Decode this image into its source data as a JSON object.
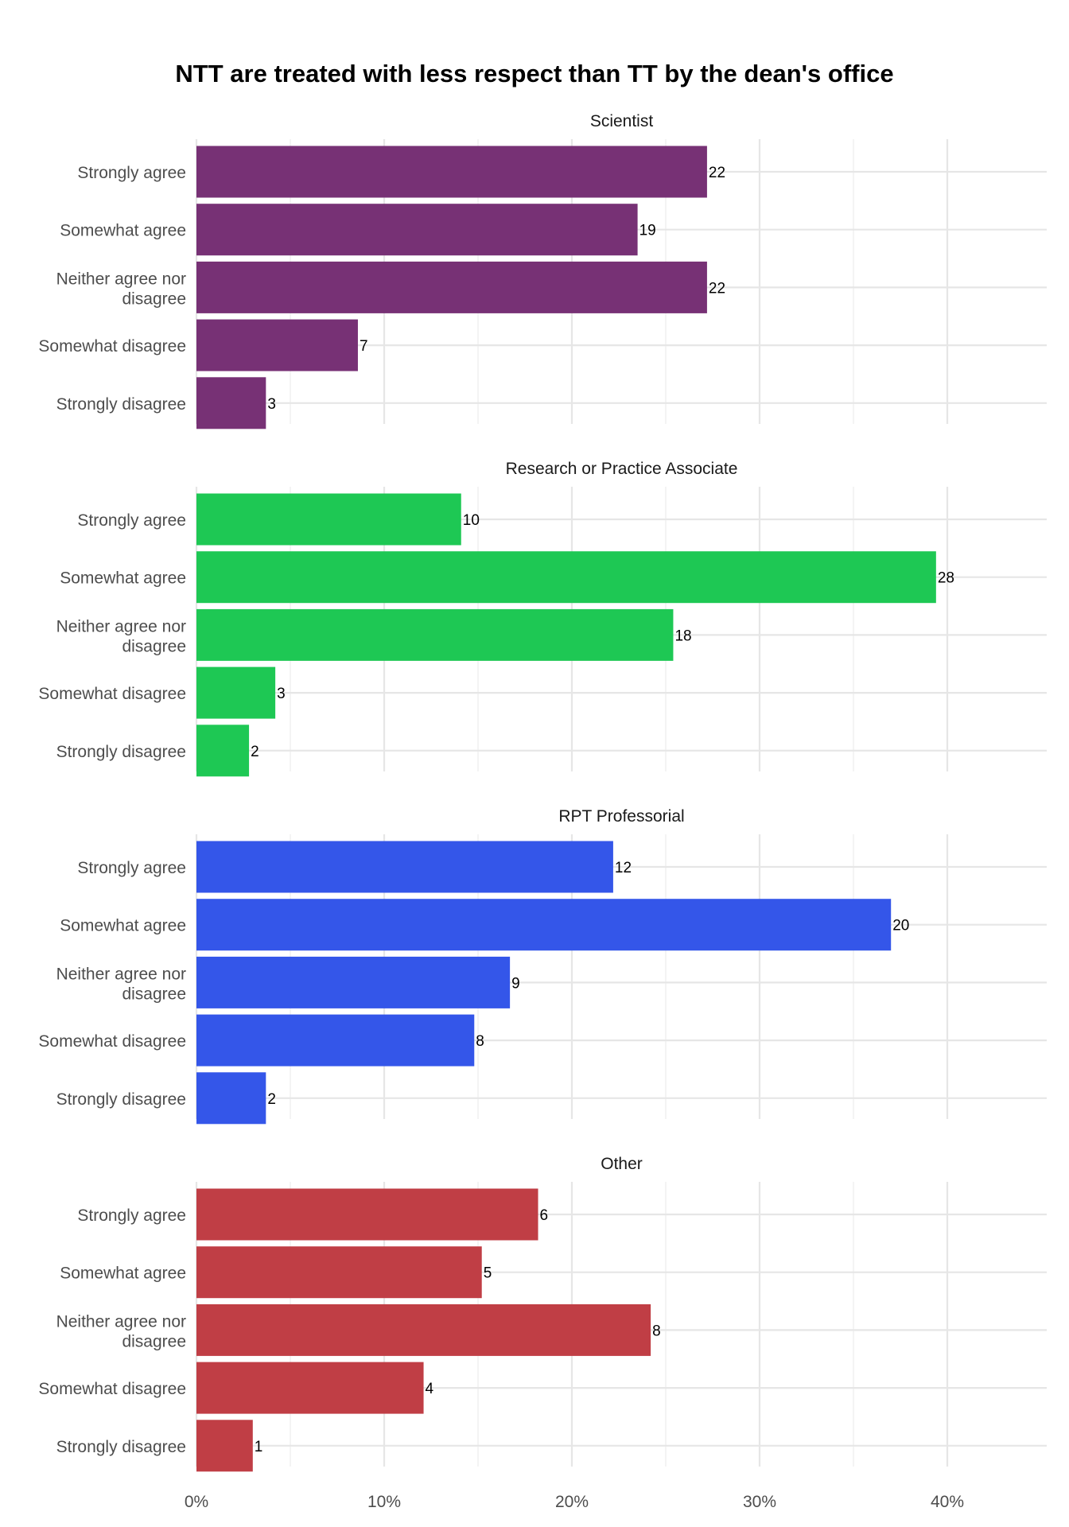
{
  "chart_data": {
    "type": "bar",
    "orientation": "horizontal",
    "title": "NTT are treated with less respect than TT by the dean's office",
    "xlabel": "",
    "ylabel": "",
    "xlim": [
      0,
      45
    ],
    "x_ticks": [
      "0%",
      "10%",
      "20%",
      "30%",
      "40%"
    ],
    "categories": [
      "Strongly agree",
      "Somewhat agree",
      "Neither agree nor disagree",
      "Somewhat disagree",
      "Strongly disagree"
    ],
    "value_unit": "percent of respondents",
    "grid": true,
    "legend": "none",
    "panels": [
      {
        "name": "Scientist",
        "color": "#773175",
        "percent": [
          27.2,
          23.5,
          27.2,
          8.6,
          3.7
        ],
        "counts": [
          22,
          19,
          22,
          7,
          3
        ]
      },
      {
        "name": "Research or Practice Associate",
        "color": "#1ec854",
        "percent": [
          14.1,
          39.4,
          25.4,
          4.2,
          2.8
        ],
        "counts": [
          10,
          28,
          18,
          3,
          2
        ]
      },
      {
        "name": "RPT Professorial",
        "color": "#3456e9",
        "percent": [
          22.2,
          37.0,
          16.7,
          14.8,
          3.7
        ],
        "counts": [
          12,
          20,
          9,
          8,
          2
        ]
      },
      {
        "name": "Other",
        "color": "#c03e45",
        "percent": [
          18.2,
          15.2,
          24.2,
          12.1,
          3.0
        ],
        "counts": [
          6,
          5,
          8,
          4,
          1
        ]
      }
    ]
  }
}
